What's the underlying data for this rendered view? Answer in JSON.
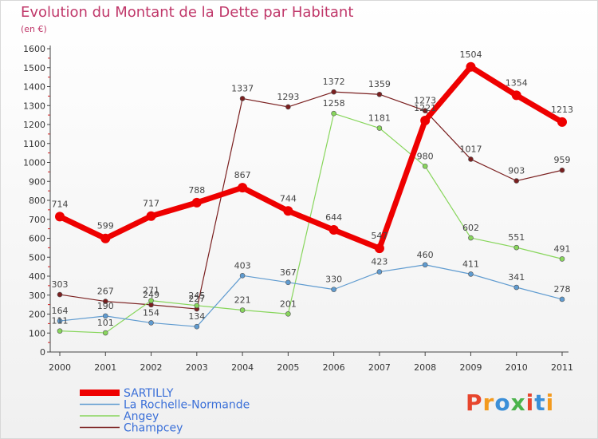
{
  "title": "Evolution du Montant de la Dette par Habitant",
  "subtitle": "(en €)",
  "logo": {
    "text": "Proxiti",
    "colors": [
      "#e7452d",
      "#f39a1e",
      "#3b8fd8",
      "#4bb34b",
      "#e7452d",
      "#3b8fd8",
      "#f39a1e"
    ]
  },
  "chart_data": {
    "type": "line",
    "title": "Evolution du Montant de la Dette par Habitant",
    "ylabel": "(en €)",
    "x": [
      "2000",
      "2001",
      "2002",
      "2003",
      "2004",
      "2005",
      "2006",
      "2007",
      "2008",
      "2009",
      "2010",
      "2011"
    ],
    "ylim": [
      0,
      1600
    ],
    "yticks": [
      0,
      100,
      200,
      300,
      400,
      500,
      600,
      700,
      800,
      900,
      1000,
      1100,
      1200,
      1300,
      1400,
      1500,
      1600
    ],
    "grid": false,
    "legend": "bottom-left",
    "series": [
      {
        "name": "Champcey",
        "color": "#7a1f1f",
        "width": 1.2,
        "marker": 3,
        "values": [
          303,
          267,
          249,
          227,
          1337,
          1293,
          1372,
          1359,
          1273,
          1017,
          903,
          959
        ],
        "labels": [
          "303",
          "267",
          "249",
          "227",
          "1337",
          "1293",
          "1372",
          "1359",
          "1273",
          "1017",
          "903",
          "959"
        ]
      },
      {
        "name": "Angey",
        "color": "#88d65c",
        "width": 1.2,
        "marker": 3,
        "values": [
          111,
          101,
          271,
          245,
          221,
          201,
          1258,
          1181,
          980,
          602,
          551,
          491
        ],
        "labels": [
          "111",
          "101",
          "271",
          "245",
          "221",
          "201",
          "1258",
          "1181",
          "980",
          "602",
          "551",
          "491"
        ]
      },
      {
        "name": "La Rochelle-Normande",
        "color": "#5f9bd0",
        "width": 1.2,
        "marker": 3,
        "values": [
          164,
          190,
          154,
          134,
          403,
          367,
          330,
          423,
          460,
          411,
          341,
          278
        ],
        "labels": [
          "164",
          "190",
          "154",
          "134",
          "403",
          "367",
          "330",
          "423",
          "460",
          "411",
          "341",
          "278"
        ]
      },
      {
        "name": "SARTILLY",
        "color": "#ee0000",
        "width": 7,
        "marker": 6,
        "values": [
          714,
          599,
          717,
          788,
          867,
          744,
          644,
          547,
          1221,
          1504,
          1354,
          1213
        ],
        "labels": [
          "714",
          "599",
          "717",
          "788",
          "867",
          "744",
          "644",
          "547",
          "1221",
          "1504",
          "1354",
          "1213"
        ]
      }
    ],
    "legend_order": [
      "SARTILLY",
      "La Rochelle-Normande",
      "Angey",
      "Champcey"
    ]
  }
}
